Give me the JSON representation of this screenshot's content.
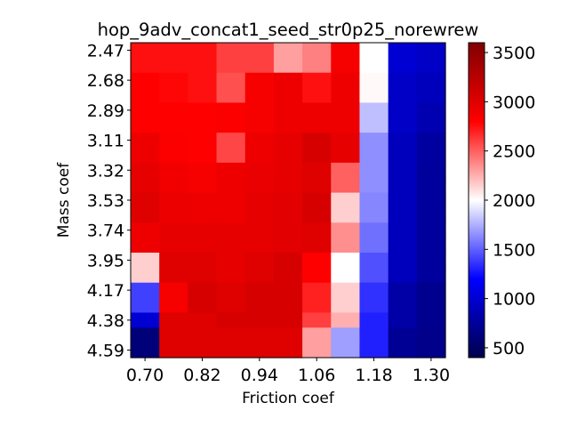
{
  "chart_data": {
    "type": "heatmap",
    "title": "hop_9adv_concat1_seed_str0p25_norewrew",
    "xlabel": "Friction coef",
    "ylabel": "Mass coef",
    "x": [
      0.7,
      0.76,
      0.82,
      0.88,
      0.94,
      1.0,
      1.06,
      1.12,
      1.18,
      1.24,
      1.3
    ],
    "y": [
      2.47,
      2.58,
      2.68,
      2.79,
      2.89,
      3.0,
      3.11,
      3.21,
      3.32,
      3.42,
      3.53,
      3.63,
      3.74,
      3.84,
      3.95,
      4.06,
      4.17,
      4.27,
      4.38,
      4.48,
      4.59
    ],
    "xtick_labels": [
      "0.70",
      "0.82",
      "0.94",
      "1.06",
      "1.18",
      "1.30"
    ],
    "ytick_labels": [
      "2.47",
      "2.68",
      "2.89",
      "3.11",
      "3.32",
      "3.53",
      "3.74",
      "3.95",
      "4.17",
      "4.38",
      "4.59"
    ],
    "colorbar": {
      "colormap": "seismic",
      "vmin": 400,
      "vmax": 3600,
      "ticks": [
        500,
        1000,
        1500,
        2000,
        2500,
        3000,
        3500
      ],
      "tick_labels": [
        "500",
        "1000",
        "1500",
        "2000",
        "2500",
        "3000",
        "3500"
      ]
    },
    "values": [
      [
        2750,
        2750,
        2750,
        2600,
        2600,
        2300,
        2400,
        2850,
        2000,
        1000,
        950
      ],
      [
        2750,
        2750,
        2750,
        2600,
        2600,
        2300,
        2400,
        2850,
        2000,
        1000,
        950
      ],
      [
        2800,
        2780,
        2750,
        2550,
        2850,
        2900,
        2750,
        2900,
        2020,
        950,
        900
      ],
      [
        2800,
        2780,
        2750,
        2550,
        2850,
        2900,
        2750,
        2900,
        2020,
        950,
        900
      ],
      [
        2800,
        2800,
        2800,
        2820,
        2850,
        2900,
        2900,
        2900,
        1800,
        950,
        850
      ],
      [
        2800,
        2800,
        2800,
        2820,
        2850,
        2900,
        2900,
        2900,
        1800,
        950,
        850
      ],
      [
        2900,
        2820,
        2800,
        2580,
        2900,
        2950,
        3050,
        2950,
        1650,
        900,
        780
      ],
      [
        2900,
        2820,
        2800,
        2580,
        2900,
        2950,
        3050,
        2950,
        1650,
        900,
        780
      ],
      [
        2950,
        2880,
        2850,
        2900,
        2930,
        2950,
        3000,
        2500,
        1650,
        900,
        760
      ],
      [
        2950,
        2880,
        2850,
        2900,
        2930,
        2950,
        3000,
        2500,
        1650,
        900,
        760
      ],
      [
        3000,
        2920,
        2900,
        2900,
        2950,
        2980,
        3050,
        2150,
        1620,
        900,
        760
      ],
      [
        3000,
        2920,
        2900,
        2900,
        2950,
        2980,
        3050,
        2150,
        1620,
        900,
        760
      ],
      [
        2900,
        2950,
        2950,
        2950,
        2950,
        2980,
        3000,
        2350,
        1550,
        900,
        760
      ],
      [
        2900,
        2950,
        2950,
        2950,
        2950,
        2980,
        3000,
        2350,
        1550,
        900,
        760
      ],
      [
        2150,
        3000,
        3000,
        2950,
        3000,
        3050,
        2800,
        2000,
        1450,
        900,
        760
      ],
      [
        2150,
        3000,
        3000,
        2950,
        3000,
        3050,
        2800,
        2000,
        1450,
        900,
        760
      ],
      [
        1400,
        2850,
        3050,
        3000,
        3050,
        3050,
        2700,
        2150,
        1350,
        800,
        700
      ],
      [
        1400,
        2850,
        3050,
        3000,
        3050,
        3050,
        2700,
        2150,
        1350,
        800,
        700
      ],
      [
        1000,
        3000,
        3000,
        3050,
        3050,
        3050,
        2600,
        2250,
        1300,
        800,
        700
      ],
      [
        600,
        3000,
        3000,
        3000,
        3000,
        3000,
        2300,
        1700,
        1300,
        720,
        680
      ],
      [
        600,
        3000,
        3000,
        3000,
        3000,
        3000,
        2300,
        1700,
        1300,
        720,
        680
      ]
    ]
  }
}
